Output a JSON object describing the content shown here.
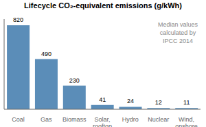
{
  "chart_data": {
    "type": "bar",
    "title": "Lifecycle CO₂-equivalent emissions (g/kWh)",
    "categories": [
      "Coal",
      "Gas",
      "Biomass",
      "Solar,\nrooftop",
      "Hydro",
      "Nuclear",
      "Wind,\nonshore"
    ],
    "values": [
      820,
      490,
      230,
      41,
      24,
      12,
      11
    ],
    "color": "#5b8db8",
    "ylim": [
      0,
      880
    ],
    "annotation": "Median values\ncalculated by\nIPCC 2014",
    "data_labels": true,
    "tick_labels": "x",
    "grid": false
  }
}
